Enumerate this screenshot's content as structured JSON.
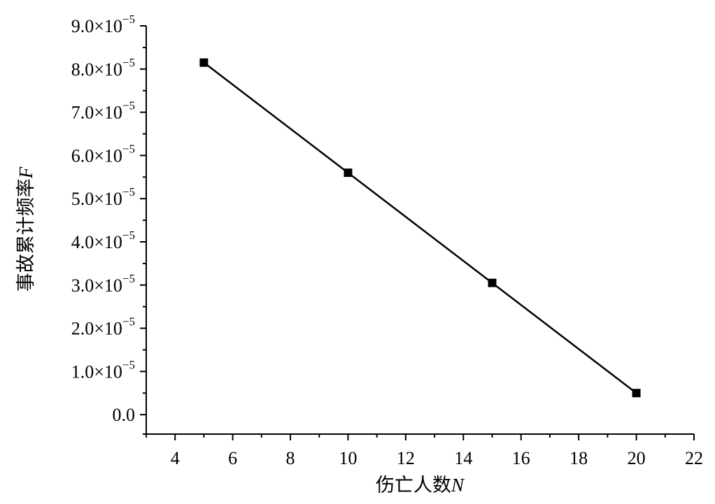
{
  "chart_data": {
    "type": "line",
    "xlabel": "伤亡人数",
    "xlabel_var": "N",
    "ylabel": "事故累计频率",
    "ylabel_var": "F",
    "xlim": [
      3,
      22
    ],
    "ylim": [
      -0.45,
      9.0
    ],
    "y_scale_exponent": -5,
    "x_ticks": [
      4,
      6,
      8,
      10,
      12,
      14,
      16,
      18,
      20,
      22
    ],
    "y_ticks": [
      {
        "mant": "9.0",
        "v": 9.0
      },
      {
        "mant": "8.0",
        "v": 8.0
      },
      {
        "mant": "7.0",
        "v": 7.0
      },
      {
        "mant": "6.0",
        "v": 6.0
      },
      {
        "mant": "5.0",
        "v": 5.0
      },
      {
        "mant": "4.0",
        "v": 4.0
      },
      {
        "mant": "3.0",
        "v": 3.0
      },
      {
        "mant": "2.0",
        "v": 2.0
      },
      {
        "mant": "1.0",
        "v": 1.0
      },
      {
        "mant": "0.0",
        "v": 0.0
      }
    ],
    "tick_multiplier": "×10",
    "tick_exponent": "−5",
    "grid": false,
    "marker": "square",
    "series": [
      {
        "x": [
          5,
          10,
          15,
          20
        ],
        "y": [
          8.15,
          5.6,
          3.05,
          0.5
        ]
      }
    ],
    "color": "#000000"
  }
}
